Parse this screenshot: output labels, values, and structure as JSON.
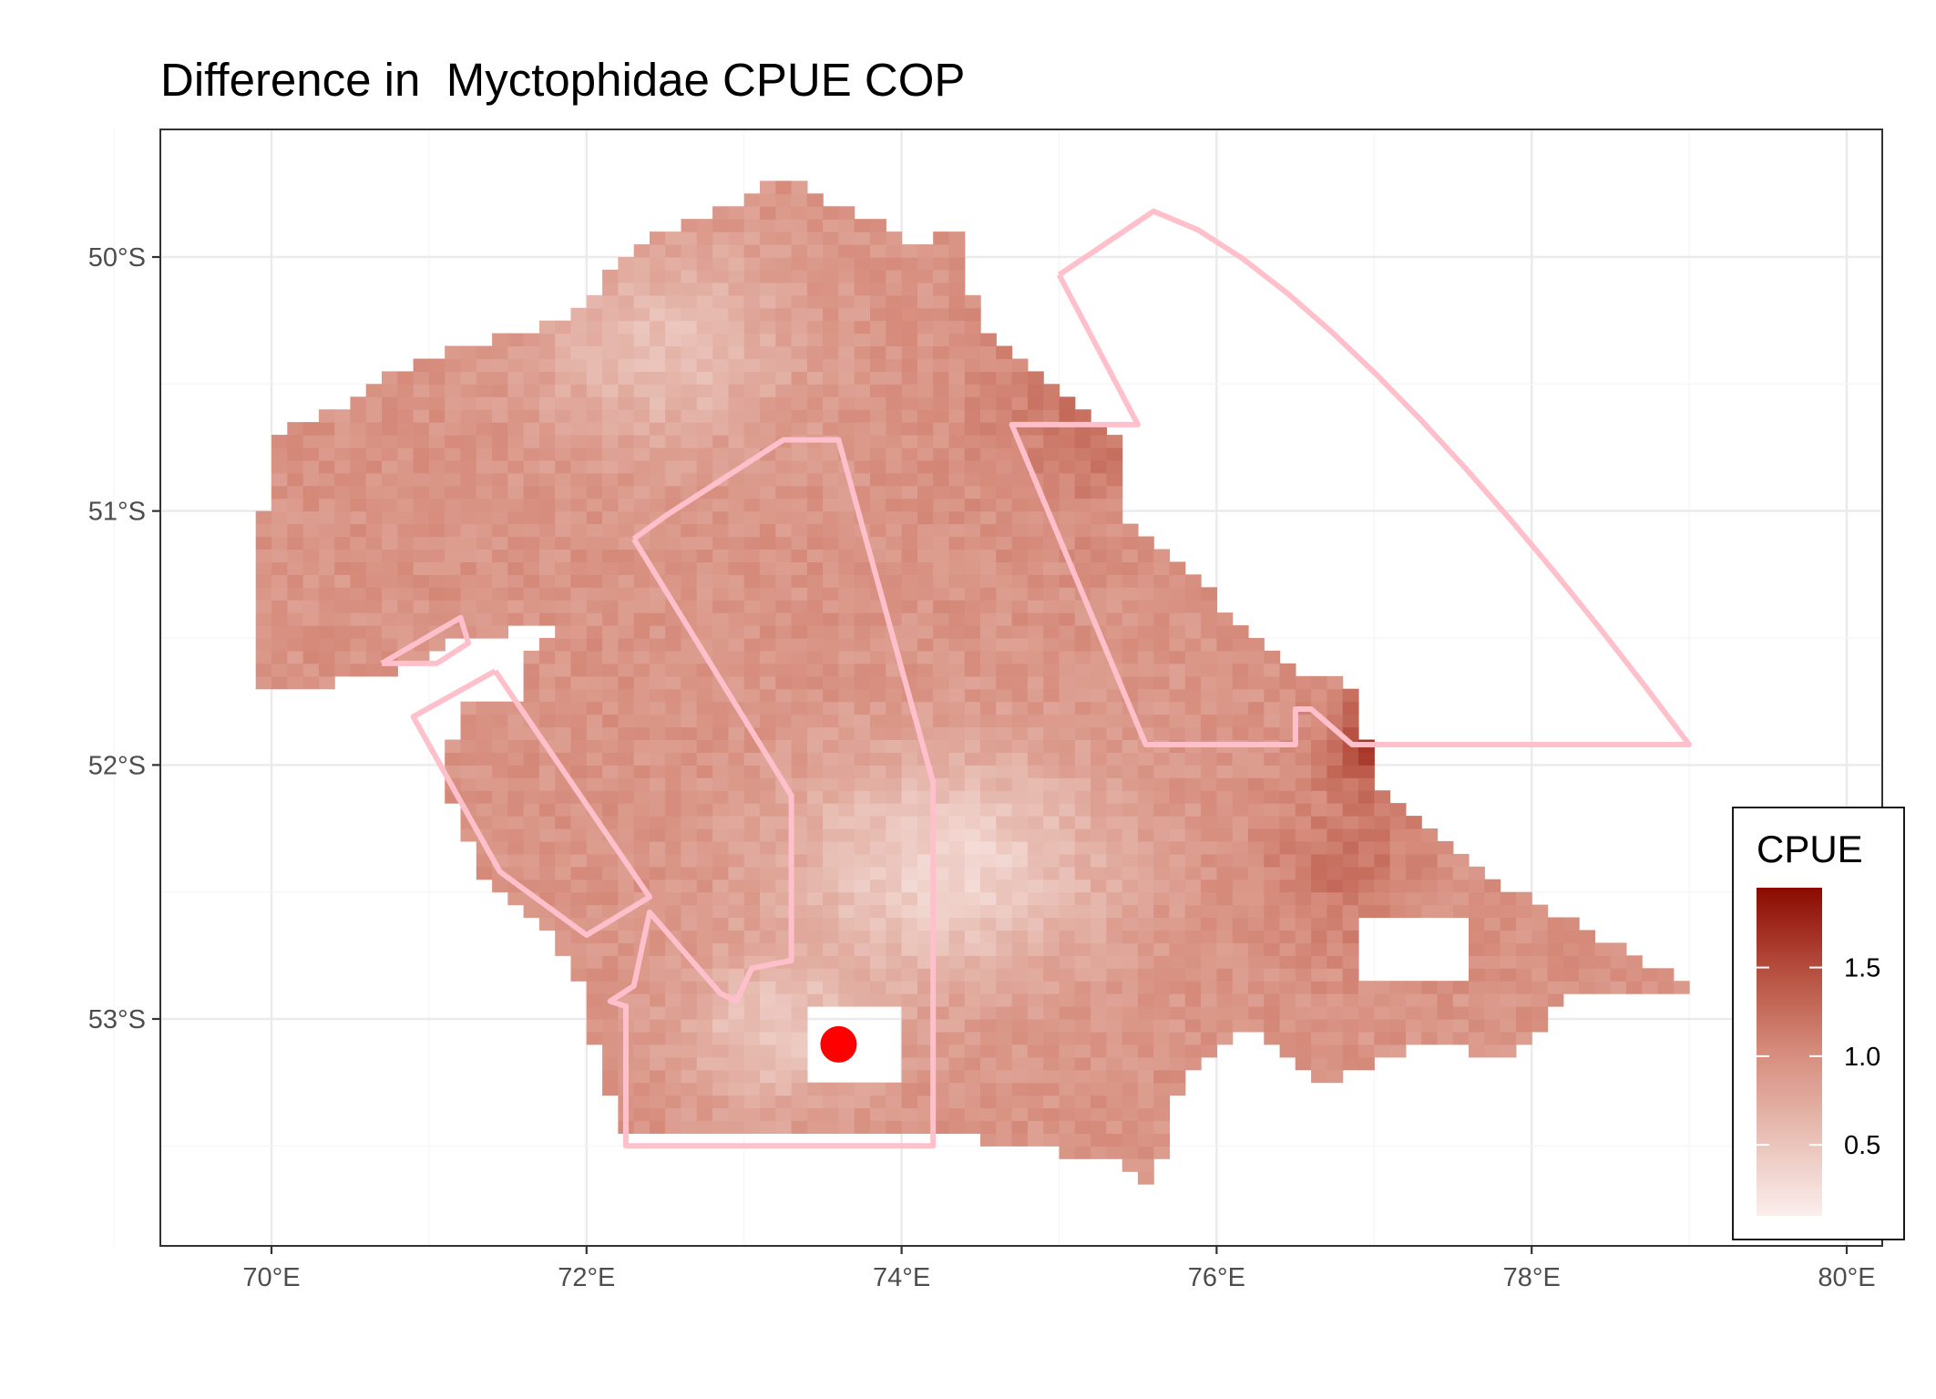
{
  "title": "Difference in  Myctophidae CPUE COP",
  "chart_data": {
    "type": "heatmap",
    "x_axis": {
      "ticks": [
        "70°E",
        "72°E",
        "74°E",
        "76°E",
        "78°E",
        "80°E"
      ],
      "range": [
        69.3,
        80.25
      ]
    },
    "y_axis": {
      "ticks": [
        "50°S",
        "51°S",
        "52°S",
        "53°S"
      ],
      "range": [
        -53.9,
        -49.5
      ]
    },
    "grid": true,
    "legend": {
      "title": "CPUE",
      "position": "right",
      "ticks": [
        "0.5",
        "1.0",
        "1.5"
      ],
      "range": [
        0.1,
        1.95
      ],
      "low_color": "#fbeeec",
      "high_color": "#8b0a00"
    },
    "marker": {
      "lon": 73.6,
      "lat": -53.1,
      "color": "#ff0000"
    },
    "outline_color": "#ffc0cb",
    "zones": [
      {
        "lon": [
          75.0,
          75.6,
          79.0,
          76.6,
          76.5,
          76.5,
          75.5,
          74.7,
          75.5,
          75.5,
          75.0
        ]
      }
    ]
  }
}
